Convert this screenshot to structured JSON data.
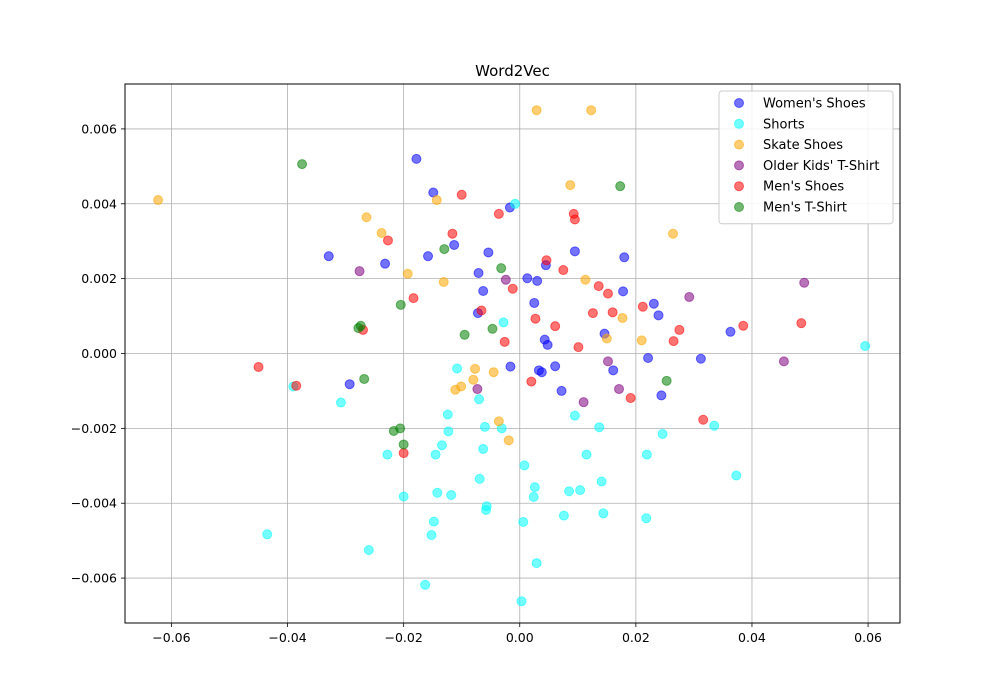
{
  "chart_data": {
    "type": "scatter",
    "title": "Word2Vec",
    "xlabel": "",
    "ylabel": "",
    "xlim": [
      -0.068,
      0.0655
    ],
    "ylim": [
      -0.0072,
      0.0072
    ],
    "x_ticks": [
      -0.06,
      -0.04,
      -0.02,
      0.0,
      0.02,
      0.04,
      0.06
    ],
    "x_tick_labels": [
      "−0.06",
      "−0.04",
      "−0.02",
      "0.00",
      "0.02",
      "0.04",
      "0.06"
    ],
    "y_ticks": [
      -0.006,
      -0.004,
      -0.002,
      0.0,
      0.002,
      0.004,
      0.006
    ],
    "y_tick_labels": [
      "−0.006",
      "−0.004",
      "−0.002",
      "0.000",
      "0.002",
      "0.004",
      "0.006"
    ],
    "grid": true,
    "legend_position": "top-right",
    "marker_opacity": 0.55,
    "series": [
      {
        "name": "Women's Shoes",
        "color": "#0000ff",
        "points": [
          [
            -0.0178,
            0.0052
          ],
          [
            -0.0149,
            0.0043
          ],
          [
            -0.0329,
            0.0026
          ],
          [
            -0.0232,
            0.0024
          ],
          [
            -0.0158,
            0.0026
          ],
          [
            -0.0113,
            0.0029
          ],
          [
            -0.0017,
            0.0039
          ],
          [
            -0.0054,
            0.0027
          ],
          [
            -0.0071,
            0.00215
          ],
          [
            -0.0063,
            0.00167
          ],
          [
            -0.0072,
            0.00108
          ],
          [
            0.0013,
            0.00201
          ],
          [
            0.003,
            0.00194
          ],
          [
            0.0045,
            0.00236
          ],
          [
            0.0095,
            0.00273
          ],
          [
            0.018,
            0.00257
          ],
          [
            0.0178,
            0.00166
          ],
          [
            0.0231,
            0.00133
          ],
          [
            0.0239,
            0.00102
          ],
          [
            0.0146,
            0.00053
          ],
          [
            0.0025,
            0.00135
          ],
          [
            0.0043,
            0.00037
          ],
          [
            0.0048,
            0.00023
          ],
          [
            0.0061,
            -0.00034
          ],
          [
            0.0033,
            -0.00045
          ],
          [
            0.0038,
            -0.0005
          ],
          [
            -0.0016,
            -0.00035
          ],
          [
            0.0072,
            -0.001
          ],
          [
            0.0161,
            -0.00045
          ],
          [
            0.0221,
            -0.00012
          ],
          [
            0.0312,
            -0.00014
          ],
          [
            0.0363,
            0.00058
          ],
          [
            0.0244,
            -0.00112
          ],
          [
            -0.0293,
            -0.00082
          ]
        ]
      },
      {
        "name": "Shorts",
        "color": "#00ffff",
        "points": [
          [
            -0.0008,
            0.004
          ],
          [
            -0.0028,
            0.00083
          ],
          [
            -0.0108,
            -0.0004
          ],
          [
            -0.007,
            -0.00122
          ],
          [
            -0.0124,
            -0.00163
          ],
          [
            -0.0123,
            -0.00208
          ],
          [
            -0.0134,
            -0.00245
          ],
          [
            -0.0145,
            -0.0027
          ],
          [
            -0.006,
            -0.00196
          ],
          [
            -0.0031,
            -0.002
          ],
          [
            -0.0063,
            -0.00255
          ],
          [
            -0.0228,
            -0.0027
          ],
          [
            -0.0308,
            -0.00131
          ],
          [
            -0.039,
            -0.00088
          ],
          [
            -0.0069,
            -0.00335
          ],
          [
            0.0008,
            -0.00299
          ],
          [
            0.0026,
            -0.00357
          ],
          [
            0.0024,
            -0.00383
          ],
          [
            -0.0057,
            -0.00408
          ],
          [
            -0.0058,
            -0.00418
          ],
          [
            -0.0142,
            -0.00372
          ],
          [
            -0.0118,
            -0.00378
          ],
          [
            -0.02,
            -0.00382
          ],
          [
            -0.0148,
            -0.00449
          ],
          [
            -0.0152,
            -0.00485
          ],
          [
            -0.026,
            -0.00525
          ],
          [
            -0.0435,
            -0.00483
          ],
          [
            -0.0163,
            -0.00618
          ],
          [
            0.0006,
            -0.0045
          ],
          [
            0.0029,
            -0.0056
          ],
          [
            0.0003,
            -0.00662
          ],
          [
            0.0085,
            -0.00368
          ],
          [
            0.0104,
            -0.00365
          ],
          [
            0.0141,
            -0.00342
          ],
          [
            0.0115,
            -0.0027
          ],
          [
            0.0076,
            -0.00433
          ],
          [
            0.0144,
            -0.00427
          ],
          [
            0.0137,
            -0.00197
          ],
          [
            0.0095,
            -0.00166
          ],
          [
            0.0219,
            -0.0027
          ],
          [
            0.0246,
            -0.00215
          ],
          [
            0.0218,
            -0.0044
          ],
          [
            0.0335,
            -0.00193
          ],
          [
            0.0373,
            -0.00326
          ],
          [
            0.0595,
            0.0002
          ]
        ]
      },
      {
        "name": "Skate Shoes",
        "color": "#ffa500",
        "points": [
          [
            -0.0623,
            0.0041
          ],
          [
            0.0029,
            0.0065
          ],
          [
            0.0123,
            0.0065
          ],
          [
            0.0087,
            0.0045
          ],
          [
            -0.0143,
            0.0041
          ],
          [
            -0.0264,
            0.00364
          ],
          [
            -0.0238,
            0.00322
          ],
          [
            -0.0193,
            0.00213
          ],
          [
            -0.0131,
            0.00191
          ],
          [
            0.0113,
            0.00197
          ],
          [
            0.0264,
            0.0032
          ],
          [
            0.0177,
            0.00095
          ],
          [
            0.021,
            0.00035
          ],
          [
            0.015,
            0.0004
          ],
          [
            -0.0077,
            -0.00041
          ],
          [
            -0.0045,
            -0.0005
          ],
          [
            -0.008,
            -0.0007
          ],
          [
            -0.0101,
            -0.00088
          ],
          [
            -0.0111,
            -0.00097
          ],
          [
            -0.0036,
            -0.00181
          ],
          [
            -0.0019,
            -0.00232
          ]
        ]
      },
      {
        "name": "Older Kids' T-Shirt",
        "color": "#800080",
        "points": [
          [
            -0.0276,
            0.0022
          ],
          [
            -0.0024,
            0.00197
          ],
          [
            0.0292,
            0.00151
          ],
          [
            0.049,
            0.00189
          ],
          [
            0.0152,
            -0.00021
          ],
          [
            0.0455,
            -0.00021
          ],
          [
            0.0171,
            -0.00095
          ],
          [
            -0.0073,
            -0.00095
          ],
          [
            0.011,
            -0.0013
          ]
        ]
      },
      {
        "name": "Men's Shoes",
        "color": "#ff0000",
        "points": [
          [
            -0.01,
            0.00424
          ],
          [
            -0.0036,
            0.00373
          ],
          [
            0.0093,
            0.00373
          ],
          [
            0.0095,
            0.00358
          ],
          [
            -0.0116,
            0.0032
          ],
          [
            -0.0227,
            0.00302
          ],
          [
            0.0046,
            0.00249
          ],
          [
            0.0075,
            0.00223
          ],
          [
            0.0136,
            0.0018
          ],
          [
            0.0152,
            0.0016
          ],
          [
            -0.0012,
            0.00173
          ],
          [
            -0.0183,
            0.00148
          ],
          [
            0.0126,
            0.00108
          ],
          [
            0.016,
            0.0011
          ],
          [
            0.0212,
            0.00125
          ],
          [
            -0.0066,
            0.00115
          ],
          [
            0.0027,
            0.00093
          ],
          [
            0.0061,
            0.00073
          ],
          [
            0.0275,
            0.00063
          ],
          [
            0.0385,
            0.00074
          ],
          [
            0.0485,
            0.00081
          ],
          [
            0.0265,
            0.00033
          ],
          [
            -0.0026,
            0.00031
          ],
          [
            0.0101,
            0.00017
          ],
          [
            -0.045,
            -0.00036
          ],
          [
            -0.0385,
            -0.00086
          ],
          [
            0.002,
            -0.00075
          ],
          [
            0.0191,
            -0.00119
          ],
          [
            0.0316,
            -0.00177
          ],
          [
            -0.02,
            -0.00266
          ],
          [
            -0.027,
            0.00063
          ]
        ]
      },
      {
        "name": "Men's T-Shirt",
        "color": "#008000",
        "points": [
          [
            -0.0375,
            0.00506
          ],
          [
            0.0173,
            0.00447
          ],
          [
            -0.013,
            0.00279
          ],
          [
            -0.0032,
            0.00228
          ],
          [
            -0.0205,
            0.0013
          ],
          [
            -0.0274,
            0.00074
          ],
          [
            -0.0278,
            0.00068
          ],
          [
            -0.0095,
            0.0005
          ],
          [
            -0.0047,
            0.00066
          ],
          [
            -0.0268,
            -0.00068
          ],
          [
            0.0253,
            -0.00073
          ],
          [
            -0.0206,
            -0.002
          ],
          [
            -0.0217,
            -0.00207
          ],
          [
            -0.02,
            -0.00243
          ]
        ]
      }
    ]
  }
}
